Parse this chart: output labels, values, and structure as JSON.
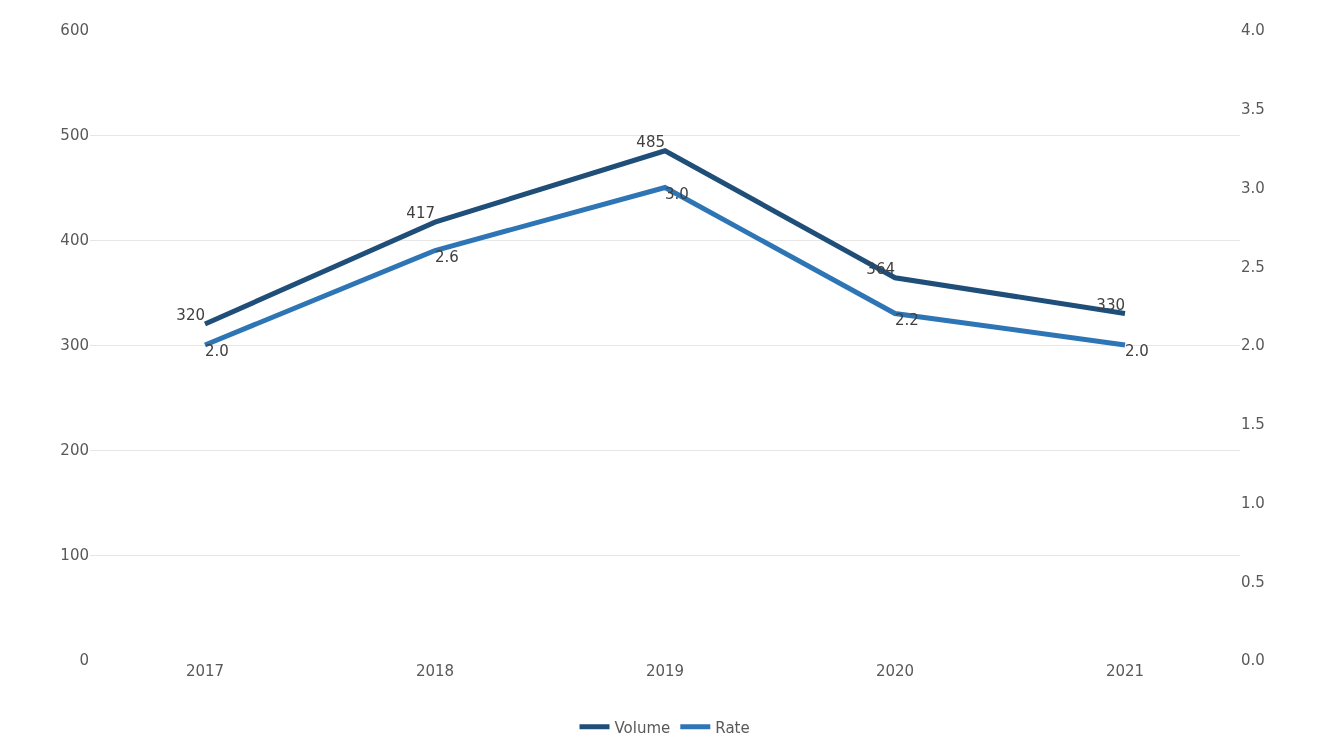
{
  "chart_data": {
    "type": "line",
    "categories": [
      "2017",
      "2018",
      "2019",
      "2020",
      "2021"
    ],
    "series": [
      {
        "name": "Volume",
        "color": "#1f4e79",
        "values": [
          320,
          417,
          485,
          364,
          330
        ],
        "value_labels": [
          "320",
          "417",
          "485",
          "364",
          "330"
        ]
      },
      {
        "name": "Rate",
        "color": "#2e75b6",
        "values": [
          2.0,
          2.6,
          3.0,
          2.2,
          2.0
        ],
        "value_labels": [
          "2.0",
          "2.6",
          "3.0",
          "2.2",
          "2.0"
        ],
        "axis": "y2"
      }
    ],
    "ylim": [
      0,
      600
    ],
    "yticks": [
      0,
      100,
      200,
      300,
      400,
      500,
      600
    ],
    "y2lim": [
      0,
      4.0
    ],
    "y2ticks": [
      {
        "value": 0,
        "label": "0.0"
      },
      {
        "value": 0.5,
        "label": "0.5"
      },
      {
        "value": 1.0,
        "label": "1.0"
      },
      {
        "value": 1.5,
        "label": "1.5"
      },
      {
        "value": 2.0,
        "label": "2.0"
      },
      {
        "value": 2.5,
        "label": "2.5"
      },
      {
        "value": 3.0,
        "label": "3.0"
      },
      {
        "value": 3.5,
        "label": "3.5"
      },
      {
        "value": 4.0,
        "label": "4.0"
      }
    ],
    "grid": "y",
    "legend": "bottom",
    "marker": "none",
    "line_style": "solid"
  }
}
